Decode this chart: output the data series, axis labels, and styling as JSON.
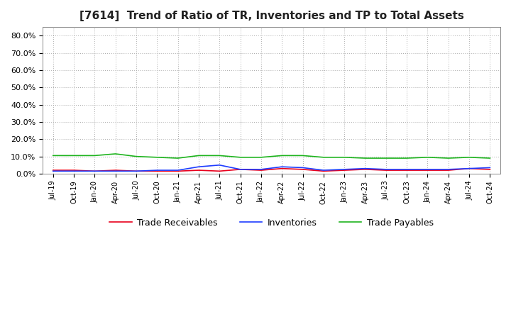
{
  "title": "[7614]  Trend of Ratio of TR, Inventories and TP to Total Assets",
  "title_fontsize": 11,
  "background_color": "#ffffff",
  "grid_color": "#aaaaaa",
  "x_labels": [
    "Jul-19",
    "Oct-19",
    "Jan-20",
    "Apr-20",
    "Jul-20",
    "Oct-20",
    "Jan-21",
    "Apr-21",
    "Jul-21",
    "Oct-21",
    "Jan-22",
    "Apr-22",
    "Jul-22",
    "Oct-22",
    "Jan-23",
    "Apr-23",
    "Jul-23",
    "Oct-23",
    "Jan-24",
    "Apr-24",
    "Jul-24",
    "Oct-24"
  ],
  "trade_receivables": [
    2.0,
    2.0,
    1.5,
    2.0,
    1.5,
    1.5,
    1.5,
    2.0,
    1.5,
    2.5,
    2.0,
    3.0,
    2.5,
    1.5,
    2.0,
    2.5,
    2.0,
    2.0,
    2.0,
    2.0,
    3.0,
    2.5
  ],
  "inventories": [
    1.5,
    1.5,
    1.5,
    1.5,
    1.5,
    2.0,
    2.0,
    4.0,
    5.0,
    2.5,
    2.5,
    4.0,
    3.5,
    2.0,
    2.5,
    3.0,
    2.5,
    2.5,
    2.5,
    2.5,
    3.0,
    3.5
  ],
  "trade_payables": [
    10.5,
    10.5,
    10.5,
    11.5,
    10.0,
    9.5,
    9.0,
    10.5,
    10.5,
    9.5,
    9.5,
    10.5,
    10.5,
    9.5,
    9.5,
    9.0,
    9.0,
    9.0,
    9.5,
    9.0,
    9.5,
    9.0
  ],
  "ylim": [
    0,
    85
  ],
  "yticks": [
    0,
    10,
    20,
    30,
    40,
    50,
    60,
    70,
    80
  ],
  "line_colors": {
    "trade_receivables": "#e8001c",
    "inventories": "#1e3cff",
    "trade_payables": "#1eb41e"
  },
  "legend_labels": [
    "Trade Receivables",
    "Inventories",
    "Trade Payables"
  ],
  "line_width": 1.2
}
